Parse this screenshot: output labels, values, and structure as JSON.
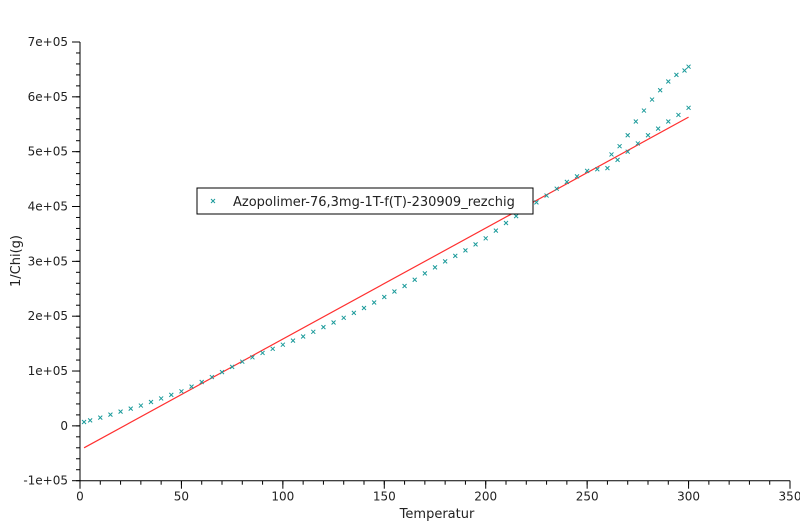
{
  "chart_data": {
    "type": "scatter",
    "xlabel": "Temperatur",
    "ylabel": "1/Chi(g)",
    "xlim": [
      0,
      350
    ],
    "ylim": [
      -100000,
      700000
    ],
    "xticks": [
      0,
      50,
      100,
      150,
      200,
      250,
      300,
      350
    ],
    "xtick_labels": [
      "0",
      "50",
      "100",
      "150",
      "200",
      "250",
      "300",
      "350"
    ],
    "yticks": [
      -100000,
      0,
      100000,
      200000,
      300000,
      400000,
      500000,
      600000,
      700000
    ],
    "ytick_labels": [
      "-1e+05",
      "0",
      "1e+05",
      "2e+05",
      "3e+05",
      "4e+05",
      "5e+05",
      "6e+05",
      "7e+05"
    ],
    "grid": false,
    "legend_placement": "center-left",
    "colors": {
      "points": "#1a9a9a",
      "fit_line": "#ff3030"
    },
    "series": [
      {
        "name": "Azopolimer-76,3mg-1T-f(T)-230909_rezchig",
        "marker": "x",
        "points": [
          [
            2,
            7000
          ],
          [
            5,
            10000
          ],
          [
            10,
            15000
          ],
          [
            15,
            20500
          ],
          [
            20,
            26000
          ],
          [
            25,
            31500
          ],
          [
            30,
            37000
          ],
          [
            35,
            43500
          ],
          [
            40,
            50000
          ],
          [
            45,
            56500
          ],
          [
            50,
            63000
          ],
          [
            55,
            71500
          ],
          [
            60,
            80000
          ],
          [
            65,
            89000
          ],
          [
            70,
            98000
          ],
          [
            75,
            107500
          ],
          [
            80,
            117000
          ],
          [
            85,
            125000
          ],
          [
            90,
            133000
          ],
          [
            95,
            140500
          ],
          [
            100,
            148000
          ],
          [
            105,
            155500
          ],
          [
            110,
            163000
          ],
          [
            115,
            171500
          ],
          [
            120,
            180000
          ],
          [
            125,
            188500
          ],
          [
            130,
            197000
          ],
          [
            135,
            206000
          ],
          [
            140,
            215000
          ],
          [
            145,
            225000
          ],
          [
            150,
            235000
          ],
          [
            155,
            245000
          ],
          [
            160,
            255000
          ],
          [
            165,
            266500
          ],
          [
            170,
            278000
          ],
          [
            175,
            289000
          ],
          [
            180,
            300000
          ],
          [
            185,
            310000
          ],
          [
            190,
            320000
          ],
          [
            195,
            331000
          ],
          [
            200,
            342000
          ],
          [
            205,
            356000
          ],
          [
            210,
            370000
          ],
          [
            215,
            382500
          ],
          [
            220,
            395000
          ],
          [
            225,
            407500
          ],
          [
            230,
            420000
          ],
          [
            235,
            432500
          ],
          [
            240,
            445000
          ],
          [
            245,
            455000
          ],
          [
            250,
            465000
          ],
          [
            255,
            468000
          ],
          [
            260,
            470000
          ],
          [
            265,
            485000
          ],
          [
            270,
            500000
          ],
          [
            275,
            515000
          ],
          [
            280,
            530000
          ],
          [
            285,
            542000
          ],
          [
            290,
            555000
          ],
          [
            295,
            567000
          ],
          [
            300,
            580000
          ],
          [
            262,
            495000
          ],
          [
            266,
            510000
          ],
          [
            270,
            530000
          ],
          [
            274,
            555000
          ],
          [
            278,
            575000
          ],
          [
            282,
            595000
          ],
          [
            286,
            612000
          ],
          [
            290,
            628000
          ],
          [
            294,
            640000
          ],
          [
            298,
            648000
          ],
          [
            300,
            655000
          ]
        ]
      }
    ],
    "fit_line": {
      "x": [
        2,
        300
      ],
      "y": [
        -40000,
        563000
      ]
    }
  }
}
